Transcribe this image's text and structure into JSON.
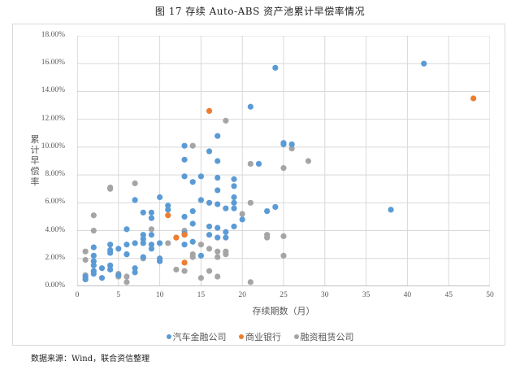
{
  "title": "图 17  存续 Auto-ABS 资产池累计早偿率情况",
  "source_note": "数据来源：Wind，联合资信整理",
  "colors": {
    "auto_finance": "#5b9bd5",
    "commercial_bank": "#ed7d31",
    "leasing": "#a5a5a5",
    "grid": "#d9d9d9"
  },
  "chart_data": {
    "type": "scatter",
    "title": "存续 Auto-ABS 资产池累计早偿率情况",
    "xlabel": "存续期数（月）",
    "ylabel": "累计早偿率",
    "xlim": [
      0,
      50
    ],
    "ylim": [
      0,
      18
    ],
    "x_ticks": [
      "0",
      "5",
      "10",
      "15",
      "20",
      "25",
      "30",
      "35",
      "40",
      "45",
      "50"
    ],
    "y_ticks": [
      "0.00%",
      "2.00%",
      "4.00%",
      "6.00%",
      "8.00%",
      "10.00%",
      "12.00%",
      "14.00%",
      "16.00%",
      "18.00%"
    ],
    "grid": true,
    "legend_position": "bottom",
    "series": [
      {
        "name": "汽车金融公司",
        "color": "#5b9bd5",
        "points": [
          [
            1,
            0.7
          ],
          [
            1,
            0.5
          ],
          [
            2,
            2.8
          ],
          [
            2,
            2.2
          ],
          [
            2,
            1.8
          ],
          [
            2,
            1.5
          ],
          [
            2,
            1.1
          ],
          [
            2,
            0.9
          ],
          [
            3,
            1.3
          ],
          [
            3,
            0.6
          ],
          [
            4,
            3.0
          ],
          [
            4,
            2.6
          ],
          [
            4,
            2.4
          ],
          [
            4,
            1.5
          ],
          [
            4,
            1.2
          ],
          [
            5,
            2.7
          ],
          [
            5,
            0.8
          ],
          [
            6,
            4.1
          ],
          [
            6,
            3.0
          ],
          [
            6,
            2.3
          ],
          [
            7,
            6.2
          ],
          [
            7,
            3.1
          ],
          [
            7,
            1.3
          ],
          [
            7,
            1.0
          ],
          [
            8,
            5.3
          ],
          [
            8,
            3.7
          ],
          [
            8,
            3.4
          ],
          [
            8,
            3.1
          ],
          [
            8,
            2.1
          ],
          [
            9,
            5.3
          ],
          [
            9,
            4.9
          ],
          [
            9,
            3.7
          ],
          [
            9,
            3.0
          ],
          [
            9,
            2.7
          ],
          [
            10,
            6.4
          ],
          [
            10,
            3.1
          ],
          [
            10,
            2.0
          ],
          [
            10,
            1.8
          ],
          [
            11,
            5.8
          ],
          [
            11,
            5.5
          ],
          [
            12,
            3.5
          ],
          [
            13,
            10.1
          ],
          [
            13,
            9.1
          ],
          [
            13,
            7.9
          ],
          [
            13,
            5.0
          ],
          [
            13,
            3.8
          ],
          [
            13,
            3.0
          ],
          [
            14,
            7.5
          ],
          [
            14,
            5.4
          ],
          [
            14,
            4.5
          ],
          [
            14,
            3.2
          ],
          [
            15,
            7.9
          ],
          [
            15,
            6.2
          ],
          [
            15,
            2.2
          ],
          [
            16,
            9.7
          ],
          [
            16,
            6.0
          ],
          [
            16,
            4.3
          ],
          [
            16,
            3.7
          ],
          [
            17,
            10.8
          ],
          [
            17,
            9.0
          ],
          [
            17,
            7.8
          ],
          [
            17,
            6.9
          ],
          [
            17,
            5.9
          ],
          [
            17,
            4.2
          ],
          [
            17,
            3.5
          ],
          [
            18,
            5.6
          ],
          [
            18,
            3.9
          ],
          [
            18,
            3.5
          ],
          [
            19,
            7.7
          ],
          [
            19,
            7.2
          ],
          [
            19,
            6.4
          ],
          [
            19,
            6.0
          ],
          [
            19,
            5.6
          ],
          [
            19,
            4.3
          ],
          [
            20,
            4.8
          ],
          [
            21,
            12.9
          ],
          [
            22,
            8.8
          ],
          [
            23,
            5.4
          ],
          [
            24,
            15.7
          ],
          [
            24,
            5.7
          ],
          [
            25,
            10.3
          ],
          [
            25,
            10.2
          ],
          [
            26,
            10.2
          ],
          [
            38,
            5.5
          ],
          [
            42,
            16.0
          ]
        ]
      },
      {
        "name": "商业银行",
        "color": "#ed7d31",
        "points": [
          [
            11,
            5.1
          ],
          [
            12,
            3.5
          ],
          [
            13,
            3.7
          ],
          [
            13,
            1.7
          ],
          [
            16,
            12.6
          ],
          [
            48,
            13.5
          ]
        ]
      },
      {
        "name": "融资租赁公司",
        "color": "#a5a5a5",
        "points": [
          [
            1,
            2.5
          ],
          [
            1,
            1.9
          ],
          [
            1,
            0.8
          ],
          [
            1,
            0.5
          ],
          [
            2,
            5.1
          ],
          [
            2,
            4.0
          ],
          [
            4,
            7.1
          ],
          [
            4,
            7.0
          ],
          [
            5,
            0.9
          ],
          [
            5,
            0.7
          ],
          [
            6,
            2.3
          ],
          [
            6,
            0.7
          ],
          [
            6,
            0.3
          ],
          [
            7,
            7.4
          ],
          [
            8,
            2.0
          ],
          [
            9,
            4.1
          ],
          [
            11,
            3.1
          ],
          [
            12,
            1.2
          ],
          [
            13,
            4.0
          ],
          [
            13,
            1.1
          ],
          [
            14,
            10.1
          ],
          [
            14,
            2.3
          ],
          [
            14,
            2.1
          ],
          [
            15,
            3.0
          ],
          [
            15,
            0.6
          ],
          [
            16,
            2.7
          ],
          [
            16,
            1.1
          ],
          [
            17,
            2.5
          ],
          [
            17,
            2.1
          ],
          [
            17,
            0.7
          ],
          [
            18,
            11.9
          ],
          [
            18,
            2.5
          ],
          [
            18,
            2.3
          ],
          [
            20,
            5.2
          ],
          [
            21,
            8.8
          ],
          [
            21,
            6.0
          ],
          [
            21,
            0.3
          ],
          [
            23,
            3.7
          ],
          [
            23,
            3.5
          ],
          [
            25,
            8.5
          ],
          [
            25,
            3.6
          ],
          [
            25,
            2.2
          ],
          [
            26,
            9.9
          ],
          [
            28,
            9.0
          ]
        ]
      }
    ]
  }
}
